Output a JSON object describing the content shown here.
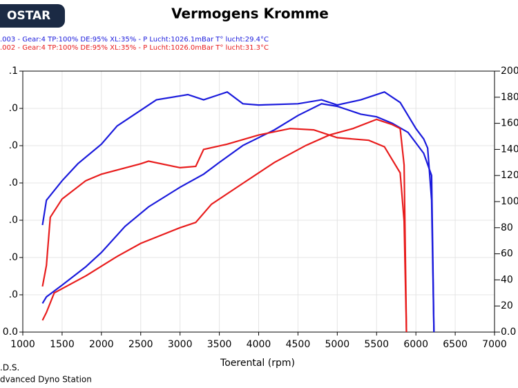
{
  "header": {
    "logo": "OSTAR"
  },
  "chart_data": {
    "type": "line",
    "title": "Vermogens Kromme",
    "x_label": "Toerental (rpm)",
    "footer": [
      ".D.S.",
      "dvanced Dyno Station"
    ],
    "xlim": [
      1000,
      7000
    ],
    "xticks": [
      1000,
      1500,
      2000,
      2500,
      3000,
      3500,
      4000,
      4500,
      5000,
      5500,
      6000,
      6500,
      7000
    ],
    "ylim": [
      0,
      7
    ],
    "yticks": [
      {
        "value": 0,
        "label": "0.0"
      },
      {
        "value": 1,
        "label": ".0"
      },
      {
        "value": 2,
        "label": ".0"
      },
      {
        "value": 3,
        "label": ".0"
      },
      {
        "value": 4,
        "label": ".0"
      },
      {
        "value": 5,
        "label": ".0"
      },
      {
        "value": 6,
        "label": ".0"
      },
      {
        "value": 7,
        "label": ".1"
      }
    ],
    "y2lim": [
      0,
      200
    ],
    "y2ticks": [
      {
        "value": 0,
        "label": "0.0"
      },
      20,
      40,
      60,
      80,
      100,
      120,
      140,
      160,
      180,
      200
    ],
    "grid": true,
    "series": [
      {
        "name": ".003 - Gear:4 TP:100% DE:95% XL:35%   - P Lucht:1026.1mBar T° lucht:29.4°C",
        "color": "#1a1adc",
        "axis": "y2",
        "curves": [
          {
            "x": [
              1250,
              1300,
              1500,
              1700,
              2000,
              2200,
              2500,
              2700,
              3000,
              3100,
              3300,
              3500,
              3600,
              3800,
              4000,
              4500,
              4800,
              5000,
              5300,
              5600,
              5800,
              6000,
              6100,
              6150,
              6200,
              6230
            ],
            "values": [
              82,
              101,
              116,
              129,
              144,
              158,
              170,
              178,
              181,
              182,
              178,
              182,
              184,
              175,
              174,
              175,
              178,
              174,
              178,
              184,
              176,
              156,
              148,
              141,
              101,
              0
            ]
          },
          {
            "x": [
              1250,
              1300,
              1500,
              1800,
              2000,
              2300,
              2600,
              3000,
              3300,
              3500,
              3800,
              4200,
              4500,
              4800,
              5000,
              5300,
              5500,
              5700,
              5900,
              6100,
              6200,
              6230
            ],
            "values": [
              22,
              27,
              36,
              50,
              61,
              81,
              96,
              111,
              121,
              130,
              143,
              155,
              166,
              175,
              173,
              167,
              165,
              160,
              153,
              137,
              120,
              0
            ]
          }
        ]
      },
      {
        "name": ".002 - Gear:4 TP:100% DE:95% XL:35%   - P Lucht:1026.0mBar T° lucht:31.3°C",
        "color": "#e81c1c",
        "axis": "y2",
        "curves": [
          {
            "x": [
              1250,
              1300,
              1350,
              1500,
              1800,
              2000,
              2500,
              2600,
              3000,
              3200,
              3300,
              3600,
              4000,
              4400,
              4700,
              5000,
              5400,
              5600,
              5800,
              5850,
              5880
            ],
            "values": [
              35,
              51,
              88,
              102,
              116,
              121,
              129,
              131,
              126,
              127,
              140,
              144,
              151,
              156,
              155,
              149,
              147,
              142,
              122,
              85,
              0
            ]
          },
          {
            "x": [
              1250,
              1300,
              1400,
              1800,
              2200,
              2500,
              3000,
              3200,
              3400,
              3800,
              4200,
              4600,
              4900,
              5200,
              5500,
              5700,
              5800,
              5850,
              5880
            ],
            "values": [
              9,
              15,
              30,
              43,
              58,
              68,
              80,
              84,
              98,
              114,
              130,
              143,
              151,
              156,
              163,
              159,
              156,
              128,
              0
            ]
          }
        ]
      }
    ]
  }
}
